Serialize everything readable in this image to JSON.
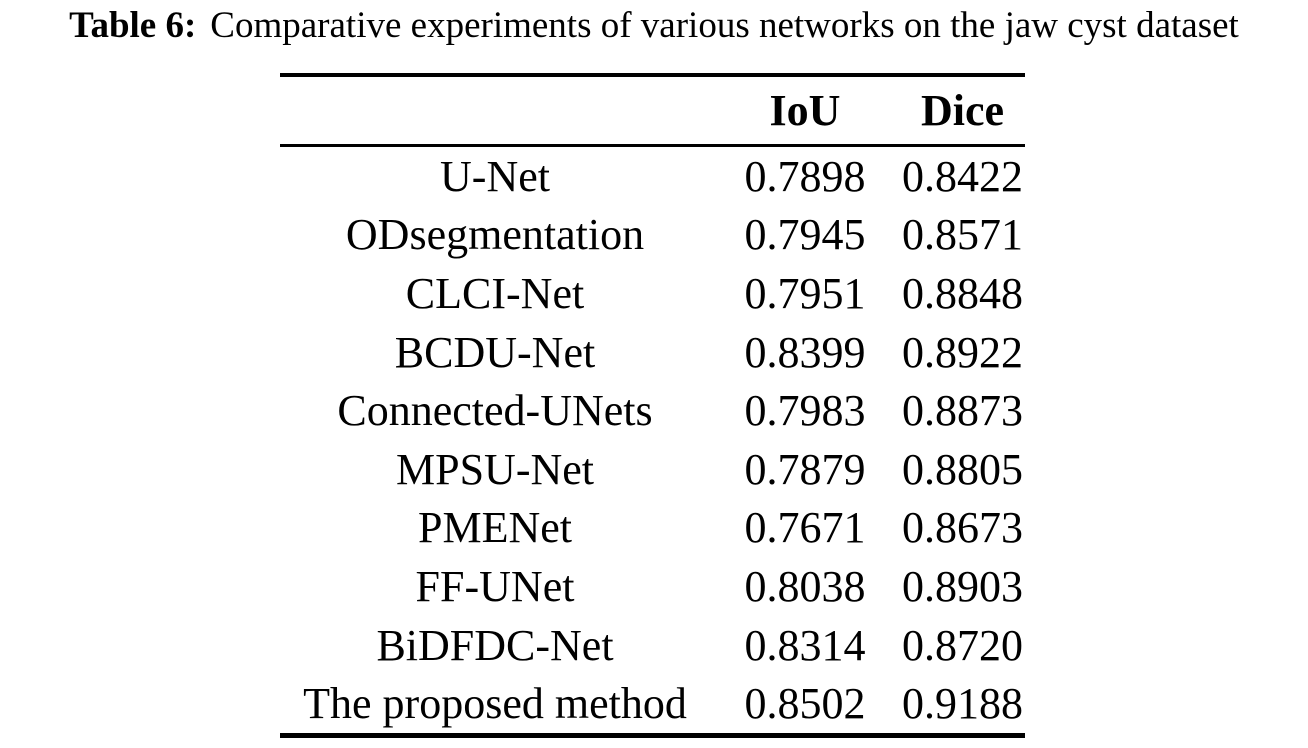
{
  "caption": {
    "label": "Table 6:",
    "text": "Comparative experiments of various networks on the jaw cyst dataset"
  },
  "table": {
    "header": {
      "model": "",
      "iou": "IoU",
      "dice": "Dice"
    },
    "rows": [
      {
        "model": "U-Net",
        "iou": "0.7898",
        "dice": "0.8422"
      },
      {
        "model": "ODsegmentation",
        "iou": "0.7945",
        "dice": "0.8571"
      },
      {
        "model": "CLCI-Net",
        "iou": "0.7951",
        "dice": "0.8848"
      },
      {
        "model": "BCDU-Net",
        "iou": "0.8399",
        "dice": "0.8922"
      },
      {
        "model": "Connected-UNets",
        "iou": "0.7983",
        "dice": "0.8873"
      },
      {
        "model": "MPSU-Net",
        "iou": "0.7879",
        "dice": "0.8805"
      },
      {
        "model": "PMENet",
        "iou": "0.7671",
        "dice": "0.8673"
      },
      {
        "model": "FF-UNet",
        "iou": "0.8038",
        "dice": "0.8903"
      },
      {
        "model": "BiDFDC-Net",
        "iou": "0.8314",
        "dice": "0.8720"
      },
      {
        "model": "The proposed method",
        "iou": "0.8502",
        "dice": "0.9188"
      }
    ]
  },
  "colors": {
    "text": "#000000",
    "background": "#ffffff",
    "rule": "#000000"
  }
}
